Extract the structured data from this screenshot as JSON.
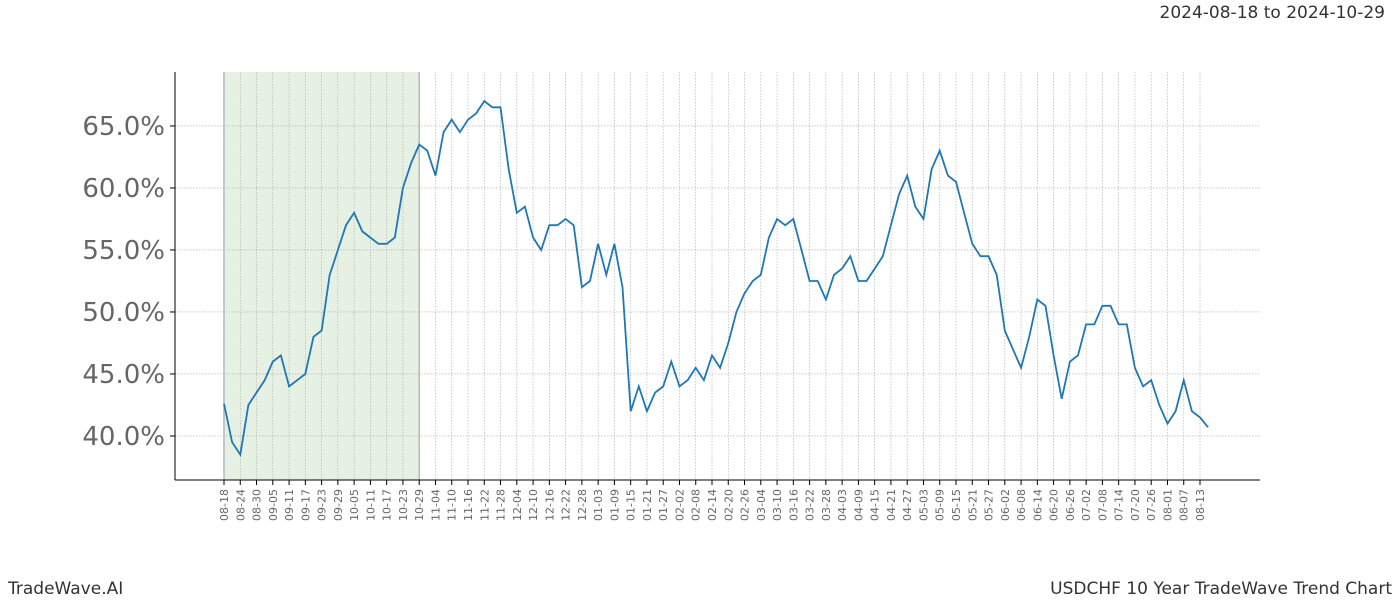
{
  "chart_data": {
    "type": "line",
    "title": "USDCHF 10 Year TradeWave Trend Chart",
    "subtitle": "2024-08-18 to 2024-10-29",
    "brand": "TradeWave.AI",
    "categories": [
      "08-18",
      null,
      "08-24",
      null,
      "08-30",
      null,
      "09-05",
      null,
      "09-11",
      null,
      "09-17",
      null,
      "09-23",
      null,
      "09-29",
      null,
      "10-05",
      null,
      "10-11",
      null,
      "10-17",
      null,
      "10-23",
      null,
      "10-29",
      null,
      "11-04",
      null,
      "11-10",
      null,
      "11-16",
      null,
      "11-22",
      null,
      "11-28",
      null,
      "12-04",
      null,
      "12-10",
      null,
      "12-16",
      null,
      "12-22",
      null,
      "12-28",
      null,
      "01-03",
      null,
      "01-09",
      null,
      "01-15",
      null,
      "01-21",
      null,
      "01-27",
      null,
      "02-02",
      null,
      "02-08",
      null,
      "02-14",
      null,
      "02-20",
      null,
      "02-26",
      null,
      "03-04",
      null,
      "03-10",
      null,
      "03-16",
      null,
      "03-22",
      null,
      "03-28",
      null,
      "04-03",
      null,
      "04-09",
      null,
      "04-15",
      null,
      "04-21",
      null,
      "04-27",
      null,
      "05-03",
      null,
      "05-09",
      null,
      "05-15",
      null,
      "05-21",
      null,
      "05-27",
      null,
      "06-02",
      null,
      "06-08",
      null,
      "06-14",
      null,
      "06-20",
      null,
      "06-26",
      null,
      "07-02",
      null,
      "07-08",
      null,
      "07-14",
      null,
      "07-20",
      null,
      "07-26",
      null,
      "08-01",
      null,
      "08-07",
      null,
      "08-13",
      null
    ],
    "values": [
      42.6,
      39.5,
      38.5,
      42.5,
      43.5,
      44.5,
      46,
      46.5,
      44,
      44.5,
      45,
      48,
      48.5,
      53,
      55,
      57,
      58,
      56.5,
      56,
      55.5,
      55.5,
      56,
      60,
      62,
      63.5,
      63,
      61,
      64.5,
      65.5,
      64.5,
      65.5,
      66,
      67,
      66.5,
      66.5,
      61.5,
      58,
      58.5,
      56,
      55,
      57,
      57,
      57.5,
      57,
      52,
      52.5,
      55.5,
      53,
      55.5,
      52,
      42,
      44,
      42,
      43.5,
      44,
      46,
      44,
      44.5,
      45.5,
      44.5,
      46.5,
      45.5,
      47.5,
      50,
      51.5,
      52.5,
      53,
      56,
      57.5,
      57,
      57.5,
      55,
      52.5,
      52.5,
      51,
      53,
      53.5,
      54.5,
      52.5,
      52.5,
      53.5,
      54.5,
      57,
      59.5,
      61,
      58.5,
      57.5,
      61.5,
      63,
      61,
      60.5,
      58,
      55.5,
      54.5,
      54.5,
      53,
      48.5,
      47,
      45.5,
      48,
      51,
      50.5,
      46.5,
      43,
      46,
      46.5,
      49,
      49,
      50.5,
      50.5,
      49,
      49,
      45.5,
      44,
      44.5,
      42.5,
      41,
      42,
      44.5,
      42,
      41.5,
      40.7
    ],
    "color": "#1f77b4",
    "shade": [
      "08-18",
      "10-29"
    ],
    "shade_color": "#e6f1e3",
    "ylim": [
      36.45,
      69.35
    ],
    "yticks": [
      {
        "value": 40,
        "label": "40.0%"
      },
      {
        "value": 45,
        "label": "45.0%"
      },
      {
        "value": 50,
        "label": "50.0%"
      },
      {
        "value": 55,
        "label": "55.0%"
      },
      {
        "value": 60,
        "label": "60.0%"
      },
      {
        "value": 65,
        "label": "65.0%"
      }
    ],
    "grid": true
  }
}
